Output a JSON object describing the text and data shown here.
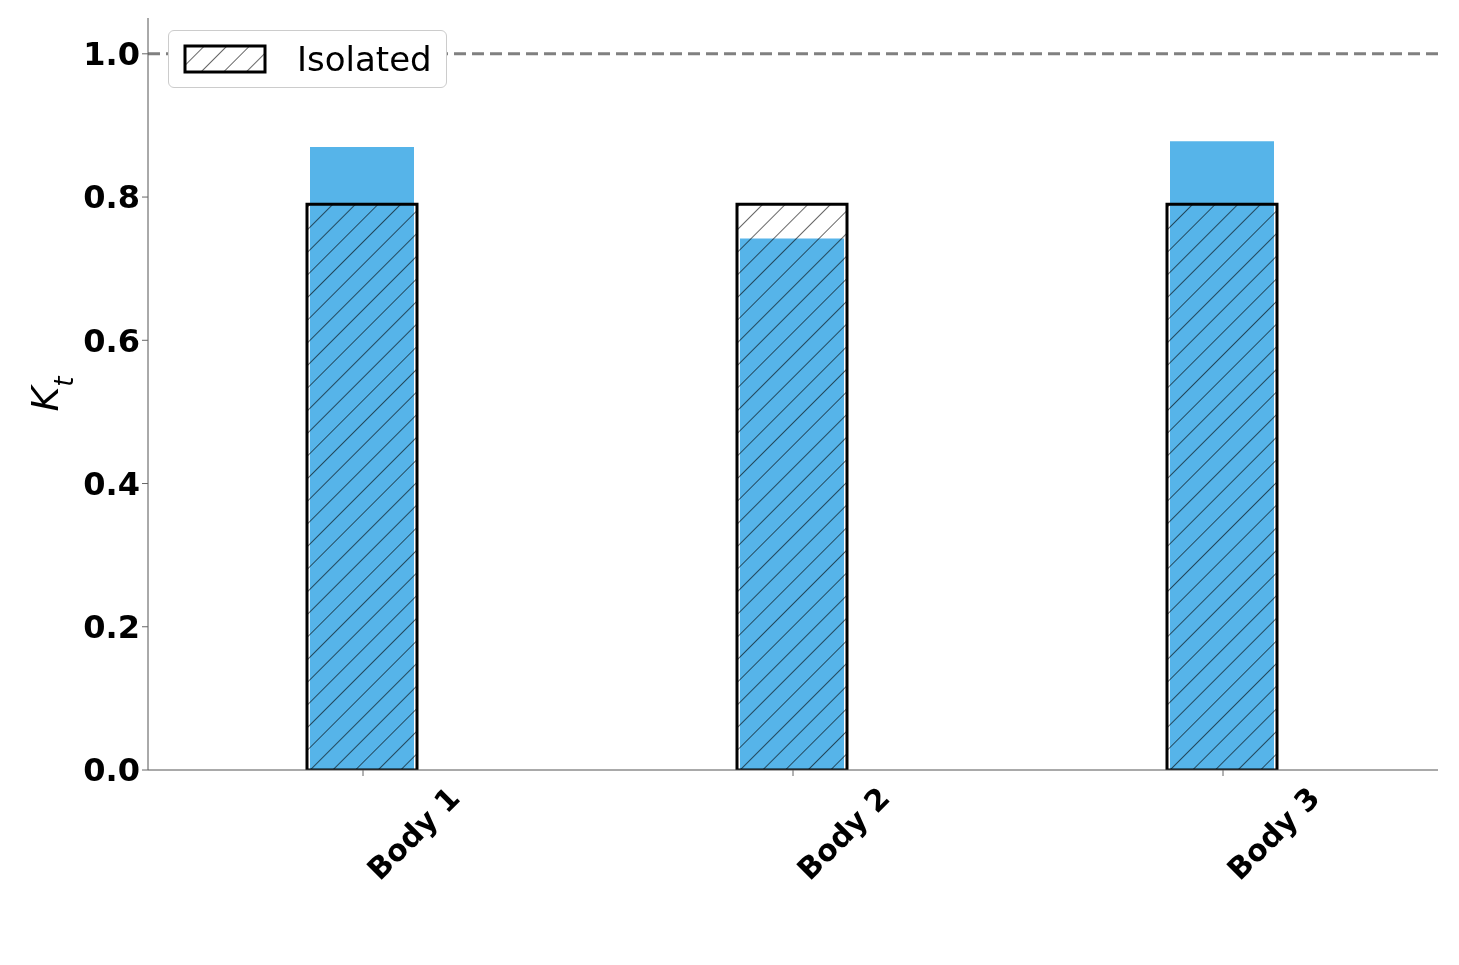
{
  "chart_data": {
    "type": "bar",
    "ylabel": "K$_{t}$",
    "categories": [
      "Body 1",
      "Body 2",
      "Body 3"
    ],
    "series": [
      {
        "color": "#56b4e9",
        "values": [
          0.87,
          0.742,
          0.878
        ]
      },
      {
        "name": "Isolated",
        "color": "#000000",
        "values": [
          0.79,
          0.79,
          0.79
        ]
      }
    ],
    "ylim": [
      0,
      1.05
    ],
    "yticks": [
      {
        "value": 0,
        "label": "0.0"
      },
      0.2,
      0.4,
      0.6,
      0.8,
      {
        "value": 1,
        "label": "1.0"
      }
    ],
    "ref_lines": [
      {
        "axis": "y",
        "value": 1.0,
        "color": "#808080",
        "line_style": "dashed"
      }
    ],
    "grid": false,
    "legend": "top left"
  }
}
